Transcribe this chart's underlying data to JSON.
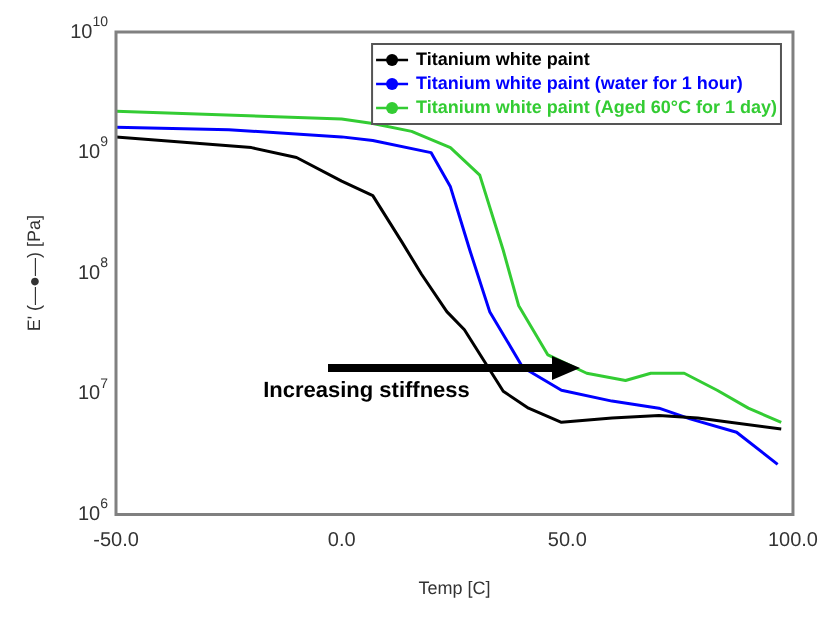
{
  "chart_data": {
    "type": "line",
    "xlabel": "Temp [C]",
    "ylabel": "E' (—●—) [Pa]",
    "log": "y",
    "grid": false,
    "legend": "top right",
    "line_style": "solid",
    "xlim": [
      -50,
      100
    ],
    "xticks": [
      {
        "value": -50,
        "label": "-50.0"
      },
      {
        "value": 0,
        "label": "0.0"
      },
      {
        "value": 50,
        "label": "50.0"
      },
      {
        "value": 100,
        "label": "100.0"
      }
    ],
    "ylim": [
      1000000,
      10000000000
    ],
    "yticks": [
      {
        "value": 1000000,
        "label": "10$^{6}$"
      },
      {
        "value": 10000000,
        "label": "10$^{7}$"
      },
      {
        "value": 100000000,
        "label": "10$^{8}$"
      },
      {
        "value": 1000000000,
        "label": "10$^{9}$"
      },
      {
        "value": 10000000000,
        "label": "10$^{10}$"
      }
    ],
    "annotations": [
      "Increasing stiffness"
    ],
    "series": [
      {
        "name": "Titanium white paint",
        "color": "#000000",
        "x": [
          -50,
          -20,
          -10,
          0,
          6.9,
          13.4,
          17.7,
          23.3,
          27.2,
          35.8,
          41.4,
          48.7,
          59.9,
          70.3,
          78.9,
          97.4
        ],
        "values": [
          1350000000,
          1100000000,
          910000000,
          580000000,
          440000000,
          180000000,
          98000000,
          48000000,
          34000000,
          10500000,
          7600000,
          5800000,
          6300000,
          6600000,
          6300000,
          5100000
        ]
      },
      {
        "name": "Titanium white paint (water for 1 hour)",
        "color": "#0000ff",
        "x": [
          -50,
          -25,
          0,
          6.9,
          19.8,
          24.1,
          28.4,
          32.8,
          40.1,
          48.7,
          59.9,
          70.3,
          77.2,
          87.5,
          96.6
        ],
        "values": [
          1620000000,
          1550000000,
          1350000000,
          1260000000,
          1000000000,
          520000000,
          155000000,
          48000000,
          16600000,
          10700000,
          8700000,
          7600000,
          6200000,
          4800000,
          2600000
        ]
      },
      {
        "name": "Titanium white paint (Aged 60°C for 1 day)",
        "color": "#33cc33",
        "x": [
          -50,
          0,
          6.9,
          15.5,
          24.1,
          30.6,
          35.8,
          39.2,
          45.7,
          54.3,
          62.9,
          68.5,
          75.9,
          83.2,
          90.1,
          97.4
        ],
        "values": [
          2200000000,
          1900000000,
          1740000000,
          1500000000,
          1100000000,
          650000000,
          155000000,
          54000000,
          21000000,
          14800000,
          12900000,
          14800000,
          14800000,
          10700000,
          7600000,
          5800000
        ]
      }
    ]
  }
}
